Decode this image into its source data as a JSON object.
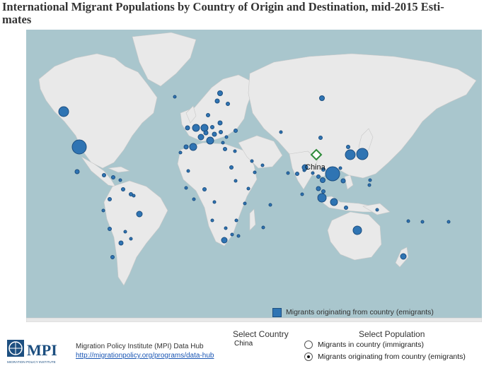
{
  "title_lines": [
    "International Migrant Populations by Country of Origin and Destination, mid-2015 Esti-",
    "mates"
  ],
  "map": {
    "selected_country": "China",
    "ocean_color": "#a9c6cd",
    "land_color": "#e9e9e9",
    "bubble_color": "#2f74b3",
    "selected_marker_color": "#2e8b3a"
  },
  "legend": {
    "label": "Migrants originating from country (emigrants)",
    "icon": "square-icon"
  },
  "footer": {
    "logo_text": "MPI",
    "logo_subtitle": "MIGRATION POLICY INSTITUTE",
    "org": "Migration Policy Institute (MPI) Data Hub",
    "url": "http://migrationpolicy.org/programs/data-hub"
  },
  "select_country": {
    "heading": "Select Country",
    "value": "China"
  },
  "select_population": {
    "heading": "Select Population",
    "options": [
      {
        "label": "Migrants in country (immigrants)",
        "selected": false
      },
      {
        "label": "Migrants originating from country (emigrants)",
        "selected": true
      }
    ]
  }
}
